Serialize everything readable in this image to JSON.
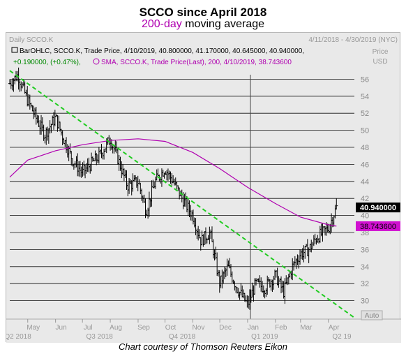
{
  "header": {
    "title": "SCCO since April 2018",
    "subtitle_highlight": "200-day",
    "subtitle_rest": " moving average"
  },
  "panel": {
    "name": "Daily SCCO.K",
    "date_range": "4/11/2018 - 4/30/2019 (NYC)",
    "axis_unit_1": "Price",
    "axis_unit_2": "USD",
    "legend_line1": "BarOHLC, SCCO.K, Trade Price, 4/10/2019, 40.800000, 41.170000, 40.645000, 40.940000,",
    "legend_line2_change": "+0.190000, (+0.47%),",
    "legend_line2_sma": "SMA, SCCO.K, Trade Price(Last), 200, 4/10/2019, 38.743600",
    "auto_label": "Auto"
  },
  "credit": "Chart courtesy of Thomson Reuters Eikon",
  "colors": {
    "background": "#e9e9e9",
    "bars": "#000000",
    "sma": "#b000b0",
    "trendline": "#22cc22",
    "last_price_badge": "#000000",
    "sma_badge": "#d010d0"
  },
  "chart_data": {
    "type": "line",
    "title": "SCCO since April 2018",
    "subtitle": "200-day moving average",
    "ylabel": "Price USD",
    "ylim": [
      28,
      58
    ],
    "y_ticks": [
      30,
      32,
      34,
      36,
      38,
      40,
      42,
      44,
      46,
      48,
      50,
      52,
      54,
      56
    ],
    "x_month_labels": [
      "May",
      "Jun",
      "Jul",
      "Aug",
      "Sep",
      "Oct",
      "Nov",
      "Dec",
      "Jan",
      "Feb",
      "Mar",
      "Apr"
    ],
    "x_quarter_labels": [
      "Q2 2018",
      "Q3 2018",
      "Q4 2018",
      "Q1 2019",
      "Q2 19"
    ],
    "grid": true,
    "series": [
      {
        "name": "SCCO.K",
        "kind": "ohlc",
        "x": [
          "2018-04-11",
          "2018-04-20",
          "2018-05-01",
          "2018-05-10",
          "2018-05-20",
          "2018-06-01",
          "2018-06-10",
          "2018-06-20",
          "2018-07-01",
          "2018-07-10",
          "2018-07-20",
          "2018-08-01",
          "2018-08-10",
          "2018-08-20",
          "2018-09-01",
          "2018-09-10",
          "2018-09-20",
          "2018-10-01",
          "2018-10-10",
          "2018-10-20",
          "2018-11-01",
          "2018-11-10",
          "2018-11-20",
          "2018-12-01",
          "2018-12-10",
          "2018-12-20",
          "2019-01-01",
          "2019-01-10",
          "2019-01-20",
          "2019-02-01",
          "2019-02-10",
          "2019-02-20",
          "2019-03-01",
          "2019-03-10",
          "2019-03-20",
          "2019-04-01",
          "2019-04-10"
        ],
        "y": [
          55.5,
          56.5,
          53.5,
          51.5,
          49.5,
          51.5,
          49,
          46.5,
          45,
          46,
          47,
          49,
          46.5,
          43.5,
          44,
          40.5,
          44,
          45.5,
          44,
          42,
          40,
          37,
          38,
          32,
          34,
          31.5,
          29.5,
          32,
          31.5,
          33,
          31,
          34,
          35.5,
          36,
          37.5,
          38.5,
          40.94
        ]
      },
      {
        "name": "SMA 200",
        "kind": "line",
        "x": [
          "2018-04-11",
          "2018-05-01",
          "2018-06-01",
          "2018-07-01",
          "2018-08-01",
          "2018-09-01",
          "2018-10-01",
          "2018-11-01",
          "2018-12-01",
          "2019-01-01",
          "2019-02-01",
          "2019-03-01",
          "2019-04-01",
          "2019-04-10"
        ],
        "y": [
          44.5,
          46.5,
          47.6,
          48.3,
          48.8,
          49,
          48.7,
          47.4,
          45.5,
          43.3,
          41.4,
          39.8,
          38.9,
          38.7436
        ]
      },
      {
        "name": "Trendline",
        "kind": "line",
        "x": [
          "2018-04-11",
          "2019-04-30"
        ],
        "y": [
          57,
          28
        ]
      }
    ],
    "last_price": 40.94,
    "sma_last": 38.7436,
    "last_price_label": "40.940000",
    "sma_last_label": "38.743600"
  }
}
